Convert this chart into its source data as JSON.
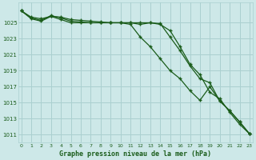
{
  "title": "Graphe pression niveau de la mer (hPa)",
  "background_color": "#cde8e8",
  "grid_color": "#aad0d0",
  "line_color": "#1a5c1a",
  "x_ticks": [
    0,
    1,
    2,
    3,
    4,
    5,
    6,
    7,
    8,
    9,
    10,
    11,
    12,
    13,
    14,
    15,
    16,
    17,
    18,
    19,
    20,
    21,
    22,
    23
  ],
  "y_ticks": [
    1011,
    1013,
    1015,
    1017,
    1019,
    1021,
    1023,
    1025
  ],
  "ylim": [
    1010.0,
    1027.5
  ],
  "xlim": [
    -0.3,
    23.3
  ],
  "series1": [
    1026.5,
    1025.7,
    1025.5,
    1025.8,
    1025.7,
    1025.4,
    1025.3,
    1025.2,
    1025.1,
    1025.0,
    1025.0,
    1025.0,
    1025.0,
    1025.0,
    1024.9,
    1023.2,
    1021.5,
    1019.6,
    1018.0,
    1017.5,
    1015.2,
    1014.0,
    1012.6,
    1011.1
  ],
  "series2": [
    1026.5,
    1025.5,
    1025.2,
    1025.8,
    1025.4,
    1025.0,
    1025.0,
    1025.0,
    1025.0,
    1025.0,
    1025.0,
    1024.8,
    1023.2,
    1022.0,
    1020.5,
    1019.0,
    1018.0,
    1016.5,
    1015.3,
    1017.0,
    1015.2,
    1014.0,
    1012.6,
    1011.1
  ],
  "series3": [
    1026.5,
    1025.6,
    1025.3,
    1025.9,
    1025.6,
    1025.2,
    1025.1,
    1025.0,
    1025.0,
    1025.0,
    1025.0,
    1025.0,
    1024.8,
    1025.0,
    1024.8,
    1024.0,
    1022.0,
    1019.8,
    1018.5,
    1016.3,
    1015.5,
    1013.8,
    1012.3,
    1011.1
  ]
}
